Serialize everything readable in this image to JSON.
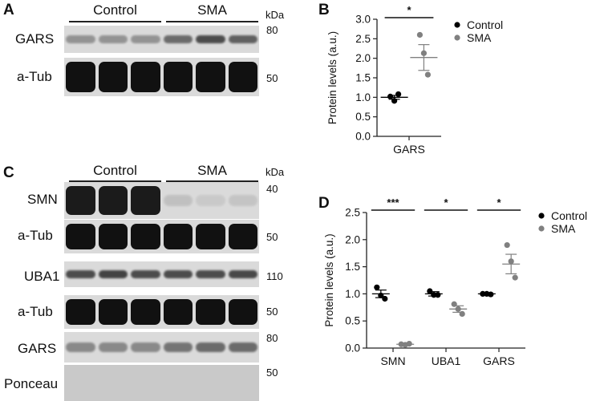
{
  "panels": {
    "A": {
      "letter": "A",
      "groups": [
        "Control",
        "SMA"
      ],
      "unit": "kDa",
      "rows": [
        {
          "label": "GARS",
          "marker": "80"
        },
        {
          "label": "a-Tub",
          "marker": "50"
        }
      ]
    },
    "B": {
      "letter": "B"
    },
    "C": {
      "letter": "C",
      "groups": [
        "Control",
        "SMA"
      ],
      "unit": "kDa",
      "rows": [
        {
          "label": "SMN",
          "marker": "40"
        },
        {
          "label": "a-Tub",
          "marker": "50"
        },
        {
          "label": "UBA1",
          "marker": "110"
        },
        {
          "label": "a-Tub",
          "marker": "50"
        },
        {
          "label": "GARS",
          "marker": "80"
        },
        {
          "label": "Ponceau",
          "marker": "50"
        }
      ]
    },
    "D": {
      "letter": "D"
    }
  },
  "blot_colors": {
    "background": "#dadada",
    "band_dark": "#111111",
    "ponceau": "#c9c9c9"
  },
  "band_intensity": {
    "A": [
      [
        0.35,
        0.35,
        0.35,
        0.55,
        0.7,
        0.6
      ],
      [
        1,
        1,
        1,
        1,
        1,
        1
      ]
    ],
    "C": [
      [
        0.95,
        0.95,
        0.95,
        0.12,
        0.08,
        0.1
      ],
      [
        1,
        1,
        1,
        1,
        1,
        1
      ],
      [
        0.7,
        0.75,
        0.7,
        0.7,
        0.7,
        0.72
      ],
      [
        1,
        1,
        1,
        1,
        1,
        1
      ],
      [
        0.4,
        0.4,
        0.4,
        0.5,
        0.55,
        0.55
      ],
      [
        0,
        0,
        0,
        0,
        0,
        0
      ]
    ]
  },
  "chart_data": [
    {
      "type": "scatter",
      "panel": "B",
      "categories": [
        "GARS"
      ],
      "ylabel": "Protein levels (a.u.)",
      "ylim": [
        0.0,
        3.0
      ],
      "yticks": [
        "0.0",
        "0.5",
        "1.0",
        "1.5",
        "2.0",
        "2.5",
        "3.0"
      ],
      "legend": "top-right",
      "series": [
        {
          "name": "Control",
          "color": "#000000",
          "points": [
            [
              1.02,
              0.91,
              1.08
            ]
          ],
          "mean": [
            1.0
          ],
          "sem": [
            0.05
          ]
        },
        {
          "name": "SMA",
          "color": "#808080",
          "points": [
            [
              2.6,
              2.13,
              1.58
            ]
          ],
          "mean": [
            2.02
          ],
          "sem": [
            0.33
          ]
        }
      ],
      "significance": [
        "*"
      ]
    },
    {
      "type": "scatter",
      "panel": "D",
      "categories": [
        "SMN",
        "UBA1",
        "GARS"
      ],
      "ylabel": "Protein levels (a.u.)",
      "ylim": [
        0.0,
        2.5
      ],
      "yticks": [
        "0.0",
        "0.5",
        "1.0",
        "1.5",
        "2.0",
        "2.5"
      ],
      "legend": "top-right",
      "series": [
        {
          "name": "Control",
          "color": "#000000",
          "points": [
            [
              1.12,
              0.97,
              0.91
            ],
            [
              1.05,
              0.98,
              0.98
            ],
            [
              1.0,
              1.0,
              0.99
            ]
          ],
          "mean": [
            1.0,
            1.0,
            1.0
          ],
          "sem": [
            0.07,
            0.04,
            0.01
          ]
        },
        {
          "name": "SMA",
          "color": "#808080",
          "points": [
            [
              0.07,
              0.06,
              0.08
            ],
            [
              0.81,
              0.72,
              0.63
            ],
            [
              1.9,
              1.6,
              1.3
            ]
          ],
          "mean": [
            0.07,
            0.72,
            1.55
          ],
          "sem": [
            0.005,
            0.06,
            0.18
          ]
        }
      ],
      "significance": [
        "***",
        "*",
        "*"
      ]
    }
  ]
}
